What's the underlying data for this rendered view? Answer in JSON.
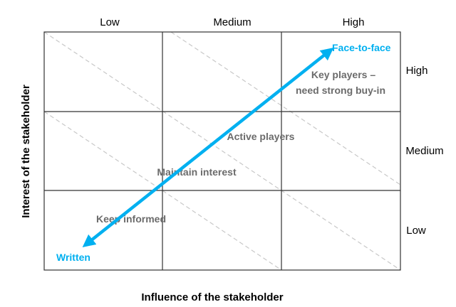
{
  "diagram": {
    "x_axis": {
      "label": "Influence of the stakeholder",
      "ticks": [
        "Low",
        "Medium",
        "High"
      ]
    },
    "y_axis": {
      "label": "Interest of the stakeholder",
      "ticks": [
        "High",
        "Medium",
        "Low"
      ]
    },
    "zones": {
      "key_players_line1": "Key players –",
      "key_players_line2": "need strong buy-in",
      "active_players": "Active players",
      "maintain_interest": "Maintain interest",
      "keep_informed": "Keep informed"
    },
    "arrow": {
      "start_label": "Written",
      "end_label": "Face-to-face"
    },
    "colors": {
      "arrow": "#00b0f0",
      "zone_text": "#6b6b6b",
      "grid": "#333333",
      "dashed": "#c8c8c8"
    }
  }
}
